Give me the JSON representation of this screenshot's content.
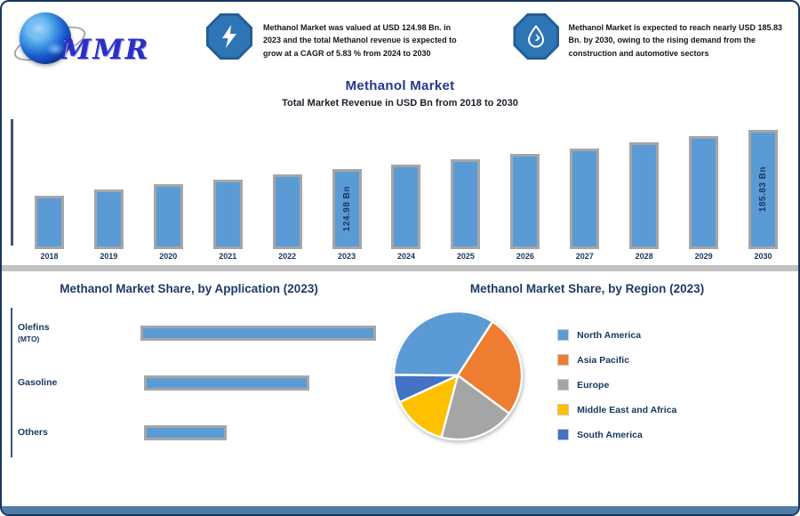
{
  "brand": {
    "logo_text": "MMR"
  },
  "header": {
    "stat1": {
      "icon": "lightning-icon",
      "text": "Methanol Market was valued at USD 124.98 Bn. in 2023 and the total Methanol revenue is expected to grow at a CAGR of 5.83 % from 2024 to 2030"
    },
    "stat2": {
      "icon": "flame-drop-icon",
      "text": "Methanol Market is expected to reach nearly USD 185.83 Bn. by 2030, owing to the rising demand from the construction and automotive sectors"
    }
  },
  "colors": {
    "accent_navy": "#17375E",
    "title_blue": "#24388C",
    "bar_blue": "#5B9BD5",
    "bar_shadow_gray": "#A6A6A6",
    "divider_gray": "#C2C2C2",
    "badge_blue": "#2E75B6",
    "footer_blue": "#4E7BA7"
  },
  "chart_data": [
    {
      "type": "bar",
      "title": "Methanol Market",
      "subtitle": "Total Market Revenue in USD Bn from 2018 to 2030",
      "categories": [
        "2018",
        "2019",
        "2020",
        "2021",
        "2022",
        "2023",
        "2024",
        "2025",
        "2026",
        "2027",
        "2028",
        "2029",
        "2030"
      ],
      "values": [
        84,
        93,
        101,
        109,
        117,
        124.98,
        132.5,
        140.3,
        148.5,
        157.2,
        166.4,
        175.9,
        185.83
      ],
      "unit": "USD Bn",
      "ylim": [
        0,
        200
      ],
      "grid": false,
      "bar_color": "#5B9BD5",
      "shadow_color": "#A6A6A6",
      "callouts": [
        {
          "category": "2023",
          "label": "124.98 Bn"
        },
        {
          "category": "2030",
          "label": "185.83 Bn"
        }
      ]
    },
    {
      "type": "bar",
      "orientation": "horizontal",
      "title": "Methanol Market Share, by Application (2023)",
      "categories": [
        {
          "label": "Olefins",
          "sub": "(MTO)"
        },
        {
          "label": "Gasoline",
          "sub": ""
        },
        {
          "label": "Others",
          "sub": ""
        }
      ],
      "values": [
        44,
        30,
        15
      ],
      "unit": "% share (estimated from bar lengths)",
      "bar_color": "#5B9BD5",
      "shadow_color": "#A6A6A6"
    },
    {
      "type": "pie",
      "title": "Methanol Market Share, by Region (2023)",
      "labels": [
        "North America",
        "Asia Pacific",
        "Europe",
        "Middle East and Africa",
        "South America"
      ],
      "values": [
        34,
        26,
        19,
        14,
        7
      ],
      "unit": "%",
      "colors": [
        "#5B9BD5",
        "#ED7D31",
        "#A5A5A5",
        "#FFC000",
        "#4472C4"
      ],
      "start_angle_deg": 270.5,
      "legend_position": "right"
    }
  ]
}
